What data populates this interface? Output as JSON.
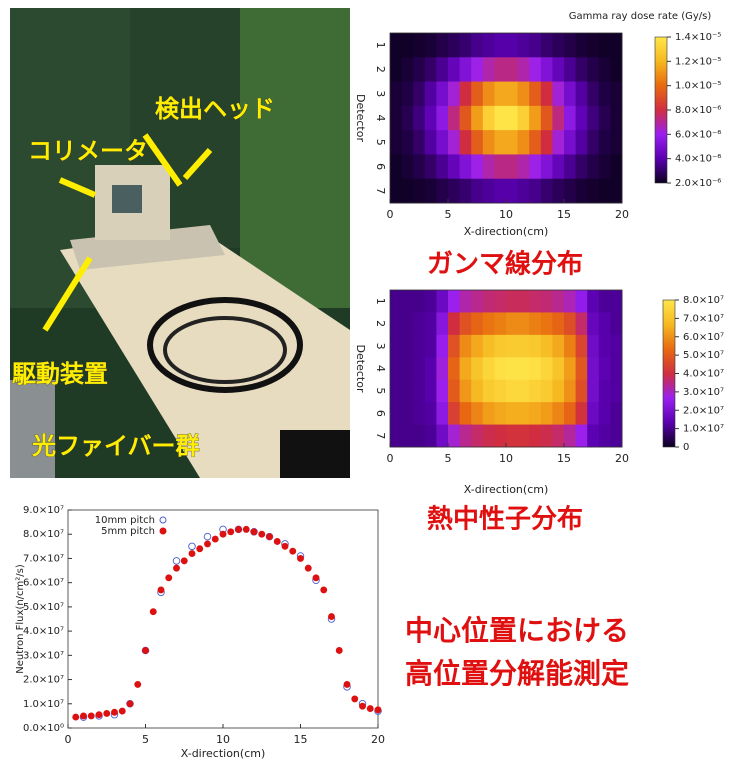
{
  "photo": {
    "labels": [
      "検出ヘッド",
      "コリメータ",
      "駆動装置",
      "光ファイバー群"
    ]
  },
  "captions": {
    "gamma": "ガンマ線分布",
    "neutron": "熱中性子分布",
    "note": [
      "中心位置における",
      "高位置分解能測定"
    ]
  },
  "chart_data": [
    {
      "type": "heatmap",
      "title": "Gamma ray dose rate (Gy/s)",
      "xlabel": "X-direction(cm)",
      "ylabel": "Detector",
      "categories": [
        "1",
        "2",
        "3",
        "4",
        "5",
        "6",
        "7"
      ],
      "xlim": [
        0,
        20
      ],
      "xticks": [
        0,
        5,
        10,
        15,
        20
      ],
      "colorscale": [
        "#0d0020",
        "#5a00b0",
        "#9a20f0",
        "#d02e40",
        "#e86a10",
        "#f6b820",
        "#ffe64a"
      ],
      "zlim": [
        2e-06,
        1.4e-05
      ],
      "zticks": [
        {
          "value": 2e-06,
          "label": "2.0×10⁻⁶"
        },
        {
          "value": 4e-06,
          "label": "4.0×10⁻⁶"
        },
        {
          "value": 6e-06,
          "label": "6.0×10⁻⁶"
        },
        {
          "value": 8e-06,
          "label": "8.0×10⁻⁶"
        },
        {
          "value": 1e-05,
          "label": "1.0×10⁻⁵"
        },
        {
          "value": 1.2e-05,
          "label": "1.2×10⁻⁵"
        },
        {
          "value": 1.4e-05,
          "label": "1.4×10⁻⁵"
        }
      ],
      "z": [
        [
          2.1e-06,
          2.1e-06,
          2.2e-06,
          2.3e-06,
          2.6e-06,
          2.8e-06,
          3.1e-06,
          3.5e-06,
          3.7e-06,
          3.9e-06,
          3.9e-06,
          3.7e-06,
          3.5e-06,
          3.1e-06,
          2.8e-06,
          2.6e-06,
          2.3e-06,
          2.2e-06,
          2.1e-06,
          2.1e-06
        ],
        [
          2.1e-06,
          2.3e-06,
          2.6e-06,
          3e-06,
          3.6e-06,
          4.3e-06,
          5.2e-06,
          6.1e-06,
          6.8e-06,
          7.2e-06,
          7.2e-06,
          6.8e-06,
          6.1e-06,
          5.2e-06,
          4.3e-06,
          3.6e-06,
          3e-06,
          2.6e-06,
          2.3e-06,
          2.1e-06
        ],
        [
          2.3e-06,
          2.5e-06,
          3e-06,
          3.8e-06,
          4.9e-06,
          6.3e-06,
          8e-06,
          9.6e-06,
          1.09e-05,
          1.16e-05,
          1.16e-05,
          1.09e-05,
          9.6e-06,
          8e-06,
          6.3e-06,
          4.9e-06,
          3.8e-06,
          3e-06,
          2.5e-06,
          2.3e-06
        ],
        [
          2.3e-06,
          2.7e-06,
          3.3e-06,
          4.2e-06,
          5.6e-06,
          7.3e-06,
          9.4e-06,
          1.13e-05,
          1.3e-05,
          1.39e-05,
          1.39e-05,
          1.3e-05,
          1.13e-05,
          9.4e-06,
          7.3e-06,
          5.6e-06,
          4.2e-06,
          3.3e-06,
          2.7e-06,
          2.3e-06
        ],
        [
          2.3e-06,
          2.5e-06,
          3e-06,
          3.8e-06,
          4.9e-06,
          6.3e-06,
          8e-06,
          9.6e-06,
          1.09e-05,
          1.16e-05,
          1.16e-05,
          1.09e-05,
          9.6e-06,
          8e-06,
          6.3e-06,
          4.9e-06,
          3.8e-06,
          3e-06,
          2.5e-06,
          2.3e-06
        ],
        [
          2.1e-06,
          2.3e-06,
          2.6e-06,
          3e-06,
          3.6e-06,
          4.3e-06,
          5.2e-06,
          6.1e-06,
          6.8e-06,
          7.2e-06,
          7.2e-06,
          6.8e-06,
          6.1e-06,
          5.2e-06,
          4.3e-06,
          3.6e-06,
          3e-06,
          2.6e-06,
          2.3e-06,
          2.1e-06
        ],
        [
          2.1e-06,
          2.1e-06,
          2.2e-06,
          2.3e-06,
          2.6e-06,
          2.8e-06,
          3.1e-06,
          3.5e-06,
          3.7e-06,
          3.9e-06,
          3.9e-06,
          3.7e-06,
          3.5e-06,
          3.1e-06,
          2.8e-06,
          2.6e-06,
          2.3e-06,
          2.2e-06,
          2.1e-06,
          2.1e-06
        ]
      ]
    },
    {
      "type": "heatmap",
      "xlabel": "X-direction(cm)",
      "ylabel": "Detector",
      "categories": [
        "1",
        "2",
        "3",
        "4",
        "5",
        "6",
        "7"
      ],
      "xlim": [
        0,
        20
      ],
      "xticks": [
        0,
        5,
        10,
        15,
        20
      ],
      "colorscale": [
        "#0d0020",
        "#5a00b0",
        "#9a20f0",
        "#d02e40",
        "#e86a10",
        "#f6b820",
        "#ffe64a"
      ],
      "zlim": [
        0,
        80000000.0
      ],
      "zticks": [
        0,
        {
          "value": 10000000.0,
          "label": "1.0×10⁷"
        },
        {
          "value": 20000000.0,
          "label": "2.0×10⁷"
        },
        {
          "value": 30000000.0,
          "label": "3.0×10⁷"
        },
        {
          "value": 40000000.0,
          "label": "4.0×10⁷"
        },
        {
          "value": 50000000.0,
          "label": "5.0×10⁷"
        },
        {
          "value": 60000000.0,
          "label": "6.0×10⁷"
        },
        {
          "value": 70000000.0,
          "label": "7.0×10⁷"
        },
        {
          "value": 80000000.0,
          "label": "8.0×10⁷"
        }
      ],
      "z": [
        [
          10000000.0,
          10000000.0,
          10000000.0,
          11000000.0,
          17000000.0,
          27000000.0,
          32000000.0,
          34000000.0,
          36000000.0,
          37000000.0,
          38000000.0,
          38000000.0,
          37000000.0,
          36000000.0,
          34000000.0,
          31000000.0,
          25000000.0,
          14000000.0,
          11000000.0,
          11000000.0
        ],
        [
          10000000.0,
          10000000.0,
          11000000.0,
          12000000.0,
          23000000.0,
          40000000.0,
          48000000.0,
          52000000.0,
          55000000.0,
          57000000.0,
          59000000.0,
          59000000.0,
          57000000.0,
          55000000.0,
          52000000.0,
          47000000.0,
          37000000.0,
          16000000.0,
          13000000.0,
          11000000.0
        ],
        [
          10000000.0,
          10000000.0,
          11000000.0,
          12000000.0,
          26000000.0,
          48000000.0,
          59000000.0,
          64000000.0,
          68000000.0,
          71000000.0,
          72000000.0,
          72000000.0,
          71000000.0,
          68000000.0,
          64000000.0,
          57000000.0,
          45000000.0,
          18000000.0,
          13000000.0,
          12000000.0
        ],
        [
          10000000.0,
          10000000.0,
          11000000.0,
          13000000.0,
          28000000.0,
          52000000.0,
          64000000.0,
          70000000.0,
          75000000.0,
          78000000.0,
          79000000.0,
          79000000.0,
          78000000.0,
          75000000.0,
          70000000.0,
          62000000.0,
          49000000.0,
          19000000.0,
          14000000.0,
          12000000.0
        ],
        [
          10000000.0,
          10000000.0,
          11000000.0,
          13000000.0,
          27000000.0,
          50000000.0,
          61000000.0,
          67000000.0,
          72000000.0,
          74000000.0,
          76000000.0,
          76000000.0,
          74000000.0,
          72000000.0,
          67000000.0,
          60000000.0,
          47000000.0,
          19000000.0,
          13000000.0,
          12000000.0
        ],
        [
          10000000.0,
          10000000.0,
          11000000.0,
          12000000.0,
          24000000.0,
          44000000.0,
          53000000.0,
          58000000.0,
          62000000.0,
          64000000.0,
          65000000.0,
          65000000.0,
          64000000.0,
          62000000.0,
          58000000.0,
          52000000.0,
          41000000.0,
          17000000.0,
          13000000.0,
          11000000.0
        ],
        [
          10000000.0,
          10000000.0,
          10000000.0,
          11000000.0,
          18000000.0,
          29000000.0,
          34000000.0,
          37000000.0,
          39000000.0,
          40000000.0,
          41000000.0,
          41000000.0,
          40000000.0,
          39000000.0,
          37000000.0,
          33000000.0,
          27000000.0,
          14000000.0,
          12000000.0,
          11000000.0
        ]
      ]
    },
    {
      "type": "scatter",
      "xlabel": "X-direction(cm)",
      "ylabel": "Neutron Flux(n/cm²/s)",
      "xlim": [
        0,
        20
      ],
      "xticks": [
        0,
        5,
        10,
        15,
        20
      ],
      "ylim": [
        0,
        90000000.0
      ],
      "yticks": [
        {
          "value": 0,
          "label": "0.0×10⁰"
        },
        {
          "value": 10000000.0,
          "label": "1.0×10⁷"
        },
        {
          "value": 20000000.0,
          "label": "2.0×10⁷"
        },
        {
          "value": 30000000.0,
          "label": "3.0×10⁷"
        },
        {
          "value": 40000000.0,
          "label": "4.0×10⁷"
        },
        {
          "value": 50000000.0,
          "label": "5.0×10⁷"
        },
        {
          "value": 60000000.0,
          "label": "6.0×10⁷"
        },
        {
          "value": 70000000.0,
          "label": "7.0×10⁷"
        },
        {
          "value": 80000000.0,
          "label": "8.0×10⁷"
        },
        {
          "value": 90000000.0,
          "label": "9.0×10⁷"
        }
      ],
      "legend": "top-left",
      "series": [
        {
          "name": "10mm pitch",
          "color": "#4a5cd0",
          "filled": false,
          "x": [
            1,
            2,
            3,
            4,
            5,
            6,
            7,
            8,
            9,
            10,
            11,
            12,
            13,
            14,
            15,
            16,
            17,
            18,
            19,
            20
          ],
          "values": [
            4500000.0,
            5000000.0,
            5500000.0,
            10000000.0,
            32000000.0,
            56000000.0,
            69000000.0,
            75000000.0,
            79000000.0,
            82000000.0,
            82000000.0,
            81000000.0,
            79000000.0,
            76000000.0,
            71000000.0,
            61000000.0,
            45000000.0,
            17000000.0,
            10000000.0,
            7000000.0
          ]
        },
        {
          "name": "5mm pitch",
          "color": "#dd1111",
          "filled": true,
          "x": [
            0.5,
            1,
            1.5,
            2,
            2.5,
            3,
            3.5,
            4,
            4.5,
            5,
            5.5,
            6,
            6.5,
            7,
            7.5,
            8,
            8.5,
            9,
            9.5,
            10,
            10.5,
            11,
            11.5,
            12,
            12.5,
            13,
            13.5,
            14,
            14.5,
            15,
            15.5,
            16,
            16.5,
            17,
            17.5,
            18,
            18.5,
            19,
            19.5,
            20
          ],
          "values": [
            4500000.0,
            5000000.0,
            5000000.0,
            5500000.0,
            6000000.0,
            6500000.0,
            7000000.0,
            10000000.0,
            18000000.0,
            32000000.0,
            48000000.0,
            57000000.0,
            62000000.0,
            66000000.0,
            69000000.0,
            72000000.0,
            74000000.0,
            76000000.0,
            78000000.0,
            80000000.0,
            81000000.0,
            82000000.0,
            82000000.0,
            81000000.0,
            80000000.0,
            79000000.0,
            77000000.0,
            75000000.0,
            73000000.0,
            70000000.0,
            66000000.0,
            62000000.0,
            57000000.0,
            46000000.0,
            32000000.0,
            18000000.0,
            12000000.0,
            9000000.0,
            8000000.0,
            7500000.0
          ]
        }
      ]
    }
  ]
}
